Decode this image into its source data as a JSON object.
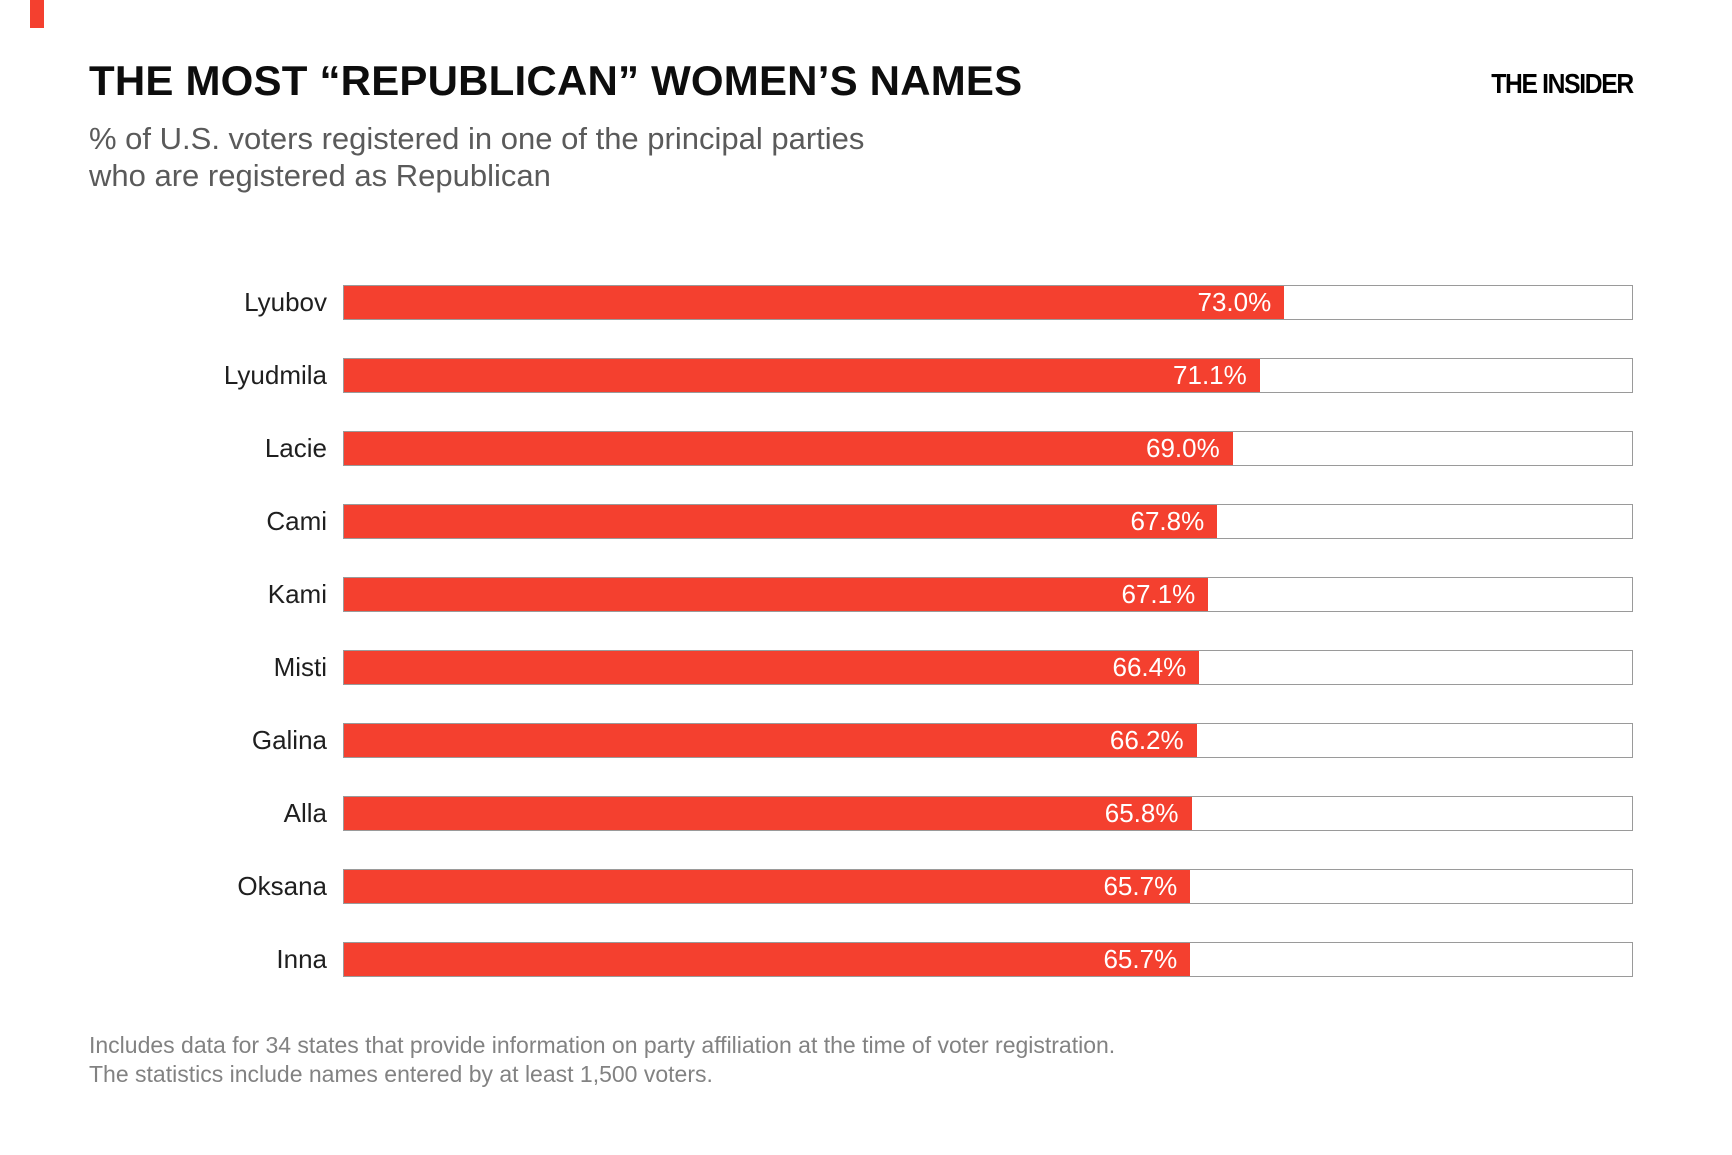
{
  "accent": {
    "color": "#f4402f"
  },
  "header": {
    "title": "THE MOST “REPUBLICAN” WOMEN’S NAMES",
    "subtitle_line1": "% of U.S. voters registered in one of the principal parties",
    "subtitle_line2": "who are registered as Republican",
    "logo": "THE INSIDER"
  },
  "chart_data": {
    "type": "bar",
    "orientation": "horizontal",
    "title": "THE MOST “REPUBLICAN” WOMEN’S NAMES",
    "xlabel": "",
    "ylabel": "",
    "xlim": [
      0,
      100
    ],
    "grid": false,
    "legend": false,
    "bar_color": "#f4402f",
    "track_border_color": "#9a9a9a",
    "categories": [
      "Lyubov",
      "Lyudmila",
      "Lacie",
      "Cami",
      "Kami",
      "Misti",
      "Galina",
      "Alla",
      "Oksana",
      "Inna"
    ],
    "values": [
      73.0,
      71.1,
      69.0,
      67.8,
      67.1,
      66.4,
      66.2,
      65.8,
      65.7,
      65.7
    ],
    "value_labels": [
      "73.0%",
      "71.1%",
      "69.0%",
      "67.8%",
      "67.1%",
      "66.4%",
      "66.2%",
      "65.8%",
      "65.7%",
      "65.7%"
    ]
  },
  "footer": {
    "line1": "Includes data for 34 states that provide information on party affiliation at the time of voter registration.",
    "line2": "The statistics include names entered by at least 1,500 voters."
  }
}
